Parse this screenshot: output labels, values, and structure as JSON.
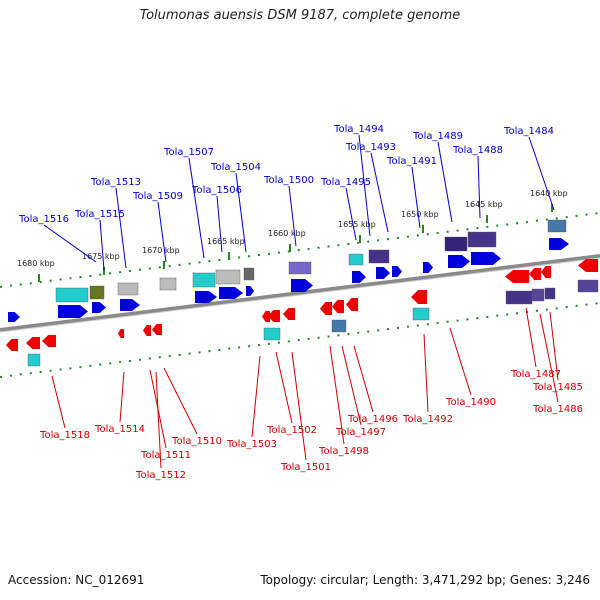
{
  "title": "Tolumonas auensis DSM 9187, complete genome",
  "accession": "Accession: NC_012691",
  "summary": "Topology: circular; Length: 3,471,292 bp; Genes: 3,246",
  "colors": {
    "forward_label": "#0000cc",
    "reverse_label": "#cc0000",
    "forward_gene": "#0000dd",
    "reverse_gene": "#ee0000",
    "axis": "#777777",
    "tick": "#228822"
  },
  "scale_ticks": [
    "1680 kbp",
    "1675 kbp",
    "1670 kbp",
    "1665 kbp",
    "1660 kbp",
    "1655 kbp",
    "1650 kbp",
    "1645 kbp",
    "1640 kbp"
  ],
  "forward_labels": [
    "Tola_1516",
    "Tola_1515",
    "Tola_1513",
    "Tola_1509",
    "Tola_1507",
    "Tola_1506",
    "Tola_1504",
    "Tola_1500",
    "Tola_1495",
    "Tola_1494",
    "Tola_1493",
    "Tola_1491",
    "Tola_1489",
    "Tola_1488",
    "Tola_1484"
  ],
  "reverse_labels": [
    "Tola_1518",
    "Tola_1514",
    "Tola_1511",
    "Tola_1512",
    "Tola_1510",
    "Tola_1503",
    "Tola_1502",
    "Tola_1501",
    "Tola_1498",
    "Tola_1497",
    "Tola_1496",
    "Tola_1492",
    "Tola_1490",
    "Tola_1487",
    "Tola_1485",
    "Tola_1486"
  ]
}
